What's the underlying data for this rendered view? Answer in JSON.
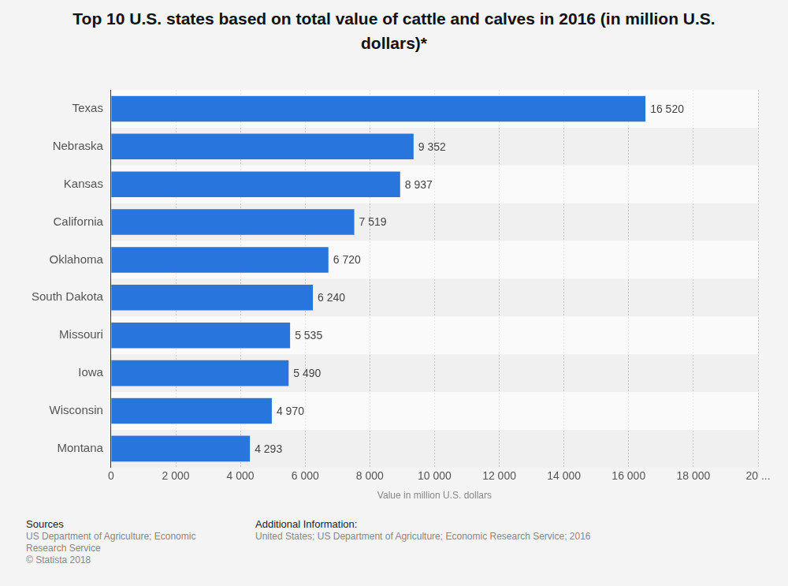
{
  "chart_data": {
    "type": "bar",
    "orientation": "horizontal",
    "title": "Top 10 U.S. states based on total value of cattle and calves in 2016 (in million U.S. dollars)*",
    "x_label": "Value in million U.S. dollars",
    "categories": [
      "Texas",
      "Nebraska",
      "Kansas",
      "California",
      "Oklahoma",
      "South Dakota",
      "Missouri",
      "Iowa",
      "Wisconsin",
      "Montana"
    ],
    "values": [
      16520,
      9352,
      8937,
      7519,
      6720,
      6240,
      5535,
      5490,
      4970,
      4293
    ],
    "value_labels": [
      "16 520",
      "9 352",
      "8 937",
      "7 519",
      "6 720",
      "6 240",
      "5 535",
      "5 490",
      "4 970",
      "4 293"
    ],
    "data_labels": true,
    "color": "#2876dd",
    "xlim": [
      0,
      20000
    ],
    "xticks": [
      0,
      {
        "value": 2000,
        "label": "2 000"
      },
      {
        "value": 4000,
        "label": "4 000"
      },
      {
        "value": 6000,
        "label": "6 000"
      },
      {
        "value": 8000,
        "label": "8 000"
      },
      {
        "value": 10000,
        "label": "10 000"
      },
      {
        "value": 12000,
        "label": "12 000"
      },
      {
        "value": 14000,
        "label": "14 000"
      },
      {
        "value": 16000,
        "label": "16 000"
      },
      {
        "value": 18000,
        "label": "18 000"
      },
      {
        "value": 20000,
        "label": "20 ..."
      }
    ],
    "grid": true,
    "source_heading": "Sources",
    "source": [
      "US Department of Agriculture; Economic Research Service",
      "© Statista 2018"
    ],
    "additional_info_heading": "Additional Information:",
    "additional_info": "United States; US Department of Agriculture; Economic Research Service; 2016"
  }
}
